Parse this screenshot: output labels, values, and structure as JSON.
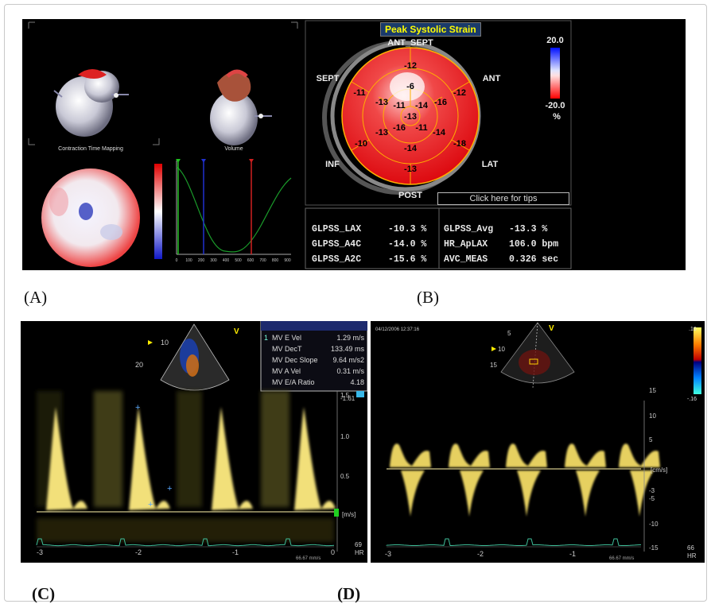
{
  "labels": {
    "a": "(A)",
    "b": "(B)",
    "c": "(C)",
    "d": "(D)"
  },
  "panel_a": {
    "caption_left": "Contraction Time Mapping",
    "caption_right": "Volume",
    "axis_ticks": [
      "0",
      "100",
      "200",
      "300",
      "400",
      "500",
      "600",
      "700",
      "800",
      "900"
    ]
  },
  "panel_b": {
    "title": "Peak Systolic Strain",
    "segments": {
      "ant_sept": "ANT_SEPT",
      "sept": "SEPT",
      "ant": "ANT",
      "inf": "INF",
      "lat": "LAT",
      "post": "POST"
    },
    "values": [
      "-12",
      "-6",
      "-11",
      "-13",
      "-11",
      "-14",
      "-16",
      "-12",
      "-13",
      "-13",
      "-16",
      "-11",
      "-14",
      "-10",
      "-14",
      "-18",
      "-13"
    ],
    "scale_max": "20.0",
    "scale_min": "-20.0",
    "scale_unit": "%",
    "tips": "Click here for tips",
    "metrics_left": [
      {
        "name": "GLPSS_LAX",
        "value": "-10.3 %"
      },
      {
        "name": "GLPSS_A4C",
        "value": "-14.0 %"
      },
      {
        "name": "GLPSS_A2C",
        "value": "-15.6 %"
      }
    ],
    "metrics_right": [
      {
        "name": "GLPSS_Avg",
        "value": "-13.3 %"
      },
      {
        "name": "HR_ApLAX",
        "value": "106.0 bpm"
      },
      {
        "name": "AVC_MEAS",
        "value": "0.326 sec"
      }
    ]
  },
  "panel_c": {
    "measurements": [
      {
        "idx": "1",
        "name": "MV E Vel",
        "value": "1.29 m/s"
      },
      {
        "idx": "",
        "name": "MV DecT",
        "value": "133.49 ms"
      },
      {
        "idx": "",
        "name": "MV Dec Slope",
        "value": "9.64 m/s2"
      },
      {
        "idx": "",
        "name": "MV A Vel",
        "value": "0.31 m/s"
      },
      {
        "idx": "",
        "name": "MV E/A Ratio",
        "value": "4.18"
      }
    ],
    "scale": [
      "1.5",
      "1.0",
      "0.5"
    ],
    "scale_top": "-1.61",
    "unit": "[m/s]",
    "time_ticks": [
      "-3",
      "-2",
      "-1",
      "0"
    ],
    "hr_value": "69",
    "hr_label": "HR",
    "sweep": "66.67 mm/s",
    "depth_marks": [
      "10",
      "20"
    ],
    "probe": "V"
  },
  "panel_d": {
    "date": "04/12/2006 12:37:16",
    "scale": [
      "15",
      "10",
      "5",
      "-3",
      "-5",
      "-10",
      "-15"
    ],
    "colorbar_top": ".16",
    "colorbar_bottom": "-.16",
    "unit": "[cm/s]",
    "time_ticks": [
      "-3",
      "-2",
      "-1"
    ],
    "hr_value": "66",
    "hr_label": "HR",
    "sweep": "66.67 mm/s",
    "depth_marks": [
      "5",
      "10",
      "15"
    ],
    "probe": "V"
  },
  "colors": {
    "strain_red": "#e8141c",
    "doppler_yellow": "#f5e36a",
    "ecg_green": "#3fbf9a"
  }
}
